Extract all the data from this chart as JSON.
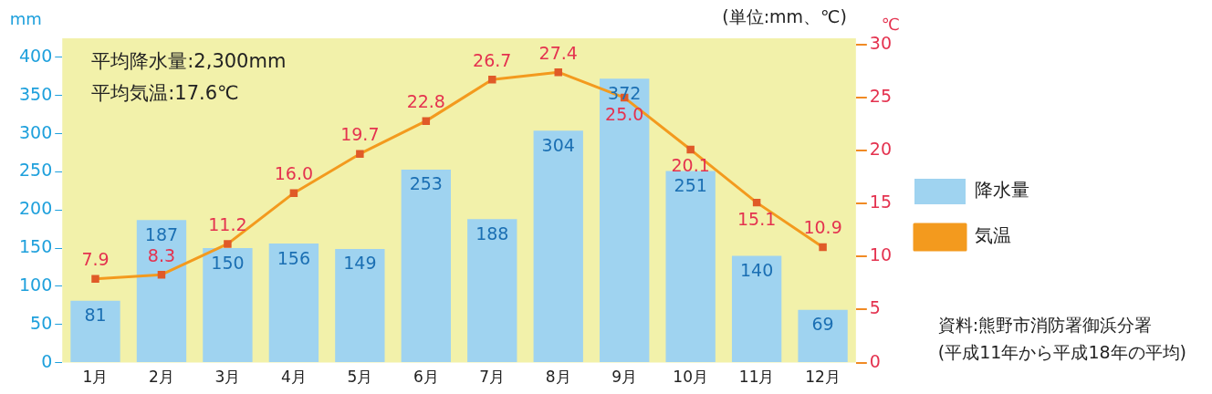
{
  "chart_data": {
    "type": "bar",
    "categories": [
      "1月",
      "2月",
      "3月",
      "4月",
      "5月",
      "6月",
      "7月",
      "8月",
      "9月",
      "10月",
      "11月",
      "12月"
    ],
    "series": [
      {
        "name": "降水量",
        "color": "#9fd3f0",
        "values": [
          81,
          187,
          150,
          156,
          149,
          253,
          188,
          304,
          372,
          251,
          140,
          69
        ]
      },
      {
        "name": "気温",
        "type": "line",
        "axis": "y2",
        "color": "#f39a1e",
        "marker": "square",
        "values": [
          7.9,
          8.3,
          11.2,
          16.0,
          19.7,
          22.8,
          26.7,
          27.4,
          25.0,
          20.1,
          15.1,
          10.9
        ],
        "value_labels": [
          "7.9",
          "8.3",
          "11.2",
          "16.0",
          "19.7",
          "22.8",
          "26.7",
          "27.4",
          "25.0",
          "20.1",
          "15.1",
          "10.9"
        ]
      }
    ],
    "ylabel": "mm",
    "y2label": "℃",
    "ylim": [
      0,
      425
    ],
    "yticks": [
      0,
      50,
      100,
      150,
      200,
      250,
      300,
      350,
      400
    ],
    "y2lim": [
      0,
      30.6
    ],
    "y2ticks": [
      0,
      5,
      10,
      15,
      20,
      25,
      30
    ],
    "data_labels": true,
    "grid": false,
    "legend": "right",
    "annotations": [
      "平均降水量:2,300mm",
      "平均気温:17.6℃",
      "(単位:mm、℃)",
      "資料:熊野市消防署御浜分署",
      "(平成11年から平成18年の平均)"
    ]
  }
}
